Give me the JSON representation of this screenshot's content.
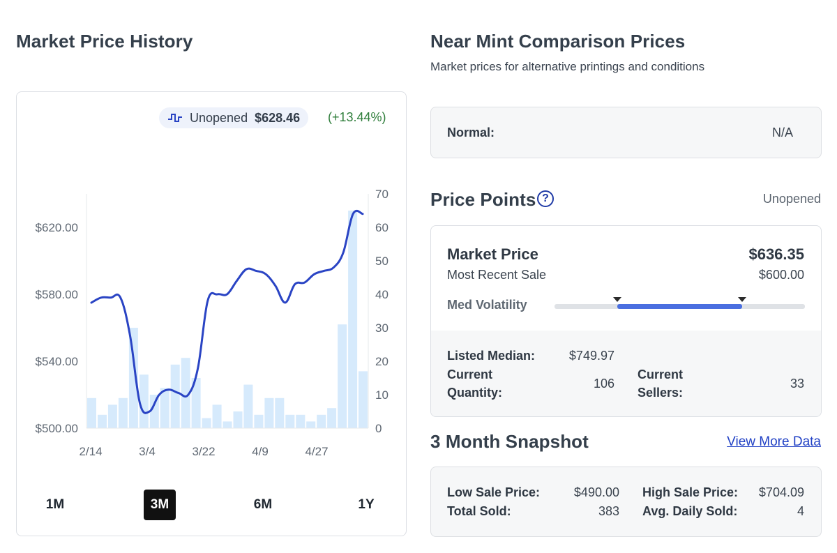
{
  "market_history": {
    "title": "Market Price History",
    "legend": {
      "label": "Unopened",
      "price": "$628.46",
      "change": "(+13.44%)",
      "icon": "step-line-icon"
    },
    "ranges": [
      {
        "label": "1M",
        "active": false
      },
      {
        "label": "3M",
        "active": true
      },
      {
        "label": "6M",
        "active": false
      },
      {
        "label": "1Y",
        "active": false
      }
    ]
  },
  "chart_data": {
    "type": "line",
    "x_tick_labels": [
      "2/14",
      "3/4",
      "3/22",
      "4/9",
      "4/27"
    ],
    "y_left_ticks": [
      "$500.00",
      "$540.00",
      "$580.00",
      "$620.00"
    ],
    "y_right_ticks": [
      "0",
      "10",
      "20",
      "30",
      "40",
      "50",
      "60",
      "70"
    ],
    "ylim_left": [
      500,
      640
    ],
    "ylim_right": [
      0,
      70
    ],
    "series": [
      {
        "axis": "left",
        "color": "#2a44c4",
        "values": [
          575,
          578,
          578,
          578,
          555,
          515,
          510,
          520,
          523,
          521,
          520,
          536,
          576,
          580,
          580,
          588,
          595,
          594,
          592,
          585,
          575,
          586,
          587,
          592,
          594,
          596,
          605,
          628,
          628
        ]
      },
      {
        "axis": "right",
        "type": "bar",
        "color": "#d6eafc",
        "values": [
          9,
          4,
          7,
          9,
          30,
          16,
          10,
          12,
          19,
          21,
          15,
          3,
          7,
          2,
          5,
          13,
          4,
          9,
          9,
          4,
          4,
          2,
          4,
          6,
          31,
          65,
          17
        ]
      }
    ],
    "grid": false,
    "legend_position": "top-right"
  },
  "comparison": {
    "title": "Near Mint Comparison Prices",
    "subtitle": "Market prices for alternative printings and conditions",
    "normal_label": "Normal:",
    "normal_value": "N/A"
  },
  "price_points": {
    "title": "Price Points",
    "help": "?",
    "condition": "Unopened",
    "market_price_label": "Market Price",
    "market_price": "$636.35",
    "recent_sale_label": "Most Recent Sale",
    "recent_sale": "$600.00",
    "volatility_label": "Med Volatility",
    "volatility_range": [
      0.25,
      0.75
    ],
    "listed_median_label": "Listed Median:",
    "listed_median": "$749.97",
    "qty_label_1": "Current",
    "qty_label_2": "Quantity:",
    "qty": "106",
    "sellers_label_1": "Current",
    "sellers_label_2": "Sellers:",
    "sellers": "33"
  },
  "snapshot": {
    "title": "3 Month Snapshot",
    "link": "View More Data",
    "low_label": "Low Sale Price:",
    "low": "$490.00",
    "high_label": "High Sale Price:",
    "high": "$704.09",
    "total_label": "Total Sold:",
    "total": "383",
    "avg_label": "Avg. Daily Sold:",
    "avg": "4"
  }
}
